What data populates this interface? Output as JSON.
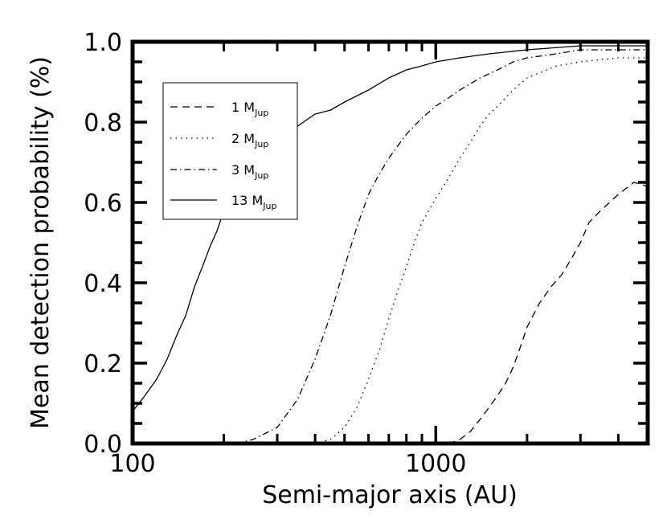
{
  "chart_data": {
    "type": "line",
    "title": "",
    "xlabel": "Semi-major axis (AU)",
    "ylabel": "Mean detection probability (%)",
    "xscale": "log",
    "xlim": [
      100,
      5000
    ],
    "ylim": [
      0,
      1.0
    ],
    "xticks": [
      {
        "value": 100,
        "label": "100"
      },
      {
        "value": 1000,
        "label": "1000"
      }
    ],
    "yticks": [
      {
        "value": 0.0,
        "label": "0.0"
      },
      {
        "value": 0.2,
        "label": "0.2"
      },
      {
        "value": 0.4,
        "label": "0.4"
      },
      {
        "value": 0.6,
        "label": "0.6"
      },
      {
        "value": 0.8,
        "label": "0.8"
      },
      {
        "value": 1.0,
        "label": "1.0"
      }
    ],
    "grid": false,
    "legend_position": "upper-left",
    "series": [
      {
        "name": "1 M",
        "name_sub": "Jup",
        "linestyle": "dashed",
        "points": [
          [
            1000,
            0.0
          ],
          [
            1100,
            0.0
          ],
          [
            1200,
            0.01
          ],
          [
            1300,
            0.03
          ],
          [
            1400,
            0.06
          ],
          [
            1500,
            0.09
          ],
          [
            1600,
            0.12
          ],
          [
            1700,
            0.15
          ],
          [
            1800,
            0.19
          ],
          [
            1900,
            0.24
          ],
          [
            2000,
            0.29
          ],
          [
            2200,
            0.35
          ],
          [
            2400,
            0.39
          ],
          [
            2600,
            0.42
          ],
          [
            2800,
            0.46
          ],
          [
            3000,
            0.5
          ],
          [
            3200,
            0.55
          ],
          [
            3500,
            0.58
          ],
          [
            4000,
            0.62
          ],
          [
            4500,
            0.65
          ],
          [
            5000,
            0.64
          ]
        ]
      },
      {
        "name": "2 M",
        "name_sub": "Jup",
        "linestyle": "dotted",
        "points": [
          [
            400,
            0.0
          ],
          [
            450,
            0.01
          ],
          [
            500,
            0.04
          ],
          [
            550,
            0.09
          ],
          [
            600,
            0.16
          ],
          [
            650,
            0.23
          ],
          [
            700,
            0.31
          ],
          [
            750,
            0.38
          ],
          [
            800,
            0.44
          ],
          [
            850,
            0.5
          ],
          [
            900,
            0.55
          ],
          [
            1000,
            0.61
          ],
          [
            1100,
            0.66
          ],
          [
            1200,
            0.71
          ],
          [
            1300,
            0.75
          ],
          [
            1400,
            0.79
          ],
          [
            1500,
            0.82
          ],
          [
            1600,
            0.84
          ],
          [
            1800,
            0.88
          ],
          [
            2000,
            0.91
          ],
          [
            2500,
            0.94
          ],
          [
            3000,
            0.95
          ],
          [
            4000,
            0.96
          ],
          [
            5000,
            0.96
          ]
        ]
      },
      {
        "name": "3 M",
        "name_sub": "Jup",
        "linestyle": "dashdot",
        "points": [
          [
            220,
            0.0
          ],
          [
            250,
            0.01
          ],
          [
            300,
            0.04
          ],
          [
            350,
            0.11
          ],
          [
            400,
            0.21
          ],
          [
            450,
            0.32
          ],
          [
            500,
            0.44
          ],
          [
            550,
            0.54
          ],
          [
            600,
            0.62
          ],
          [
            650,
            0.67
          ],
          [
            700,
            0.71
          ],
          [
            800,
            0.77
          ],
          [
            900,
            0.81
          ],
          [
            1000,
            0.84
          ],
          [
            1100,
            0.86
          ],
          [
            1200,
            0.88
          ],
          [
            1400,
            0.91
          ],
          [
            1600,
            0.93
          ],
          [
            1800,
            0.95
          ],
          [
            2000,
            0.96
          ],
          [
            2500,
            0.97
          ],
          [
            3000,
            0.98
          ],
          [
            4000,
            0.98
          ],
          [
            5000,
            0.98
          ]
        ]
      },
      {
        "name": "13 M",
        "name_sub": "Jup",
        "linestyle": "solid",
        "points": [
          [
            100,
            0.08
          ],
          [
            110,
            0.12
          ],
          [
            120,
            0.16
          ],
          [
            130,
            0.21
          ],
          [
            140,
            0.27
          ],
          [
            150,
            0.32
          ],
          [
            160,
            0.39
          ],
          [
            170,
            0.44
          ],
          [
            180,
            0.49
          ],
          [
            190,
            0.53
          ],
          [
            200,
            0.58
          ],
          [
            220,
            0.64
          ],
          [
            240,
            0.69
          ],
          [
            260,
            0.72
          ],
          [
            280,
            0.74
          ],
          [
            300,
            0.76
          ],
          [
            350,
            0.79
          ],
          [
            400,
            0.82
          ],
          [
            450,
            0.83
          ],
          [
            500,
            0.85
          ],
          [
            600,
            0.88
          ],
          [
            700,
            0.91
          ],
          [
            800,
            0.93
          ],
          [
            900,
            0.94
          ],
          [
            1000,
            0.95
          ],
          [
            1200,
            0.96
          ],
          [
            1500,
            0.97
          ],
          [
            2000,
            0.98
          ],
          [
            3000,
            0.99
          ],
          [
            4000,
            0.99
          ],
          [
            5000,
            0.99
          ]
        ]
      }
    ]
  }
}
